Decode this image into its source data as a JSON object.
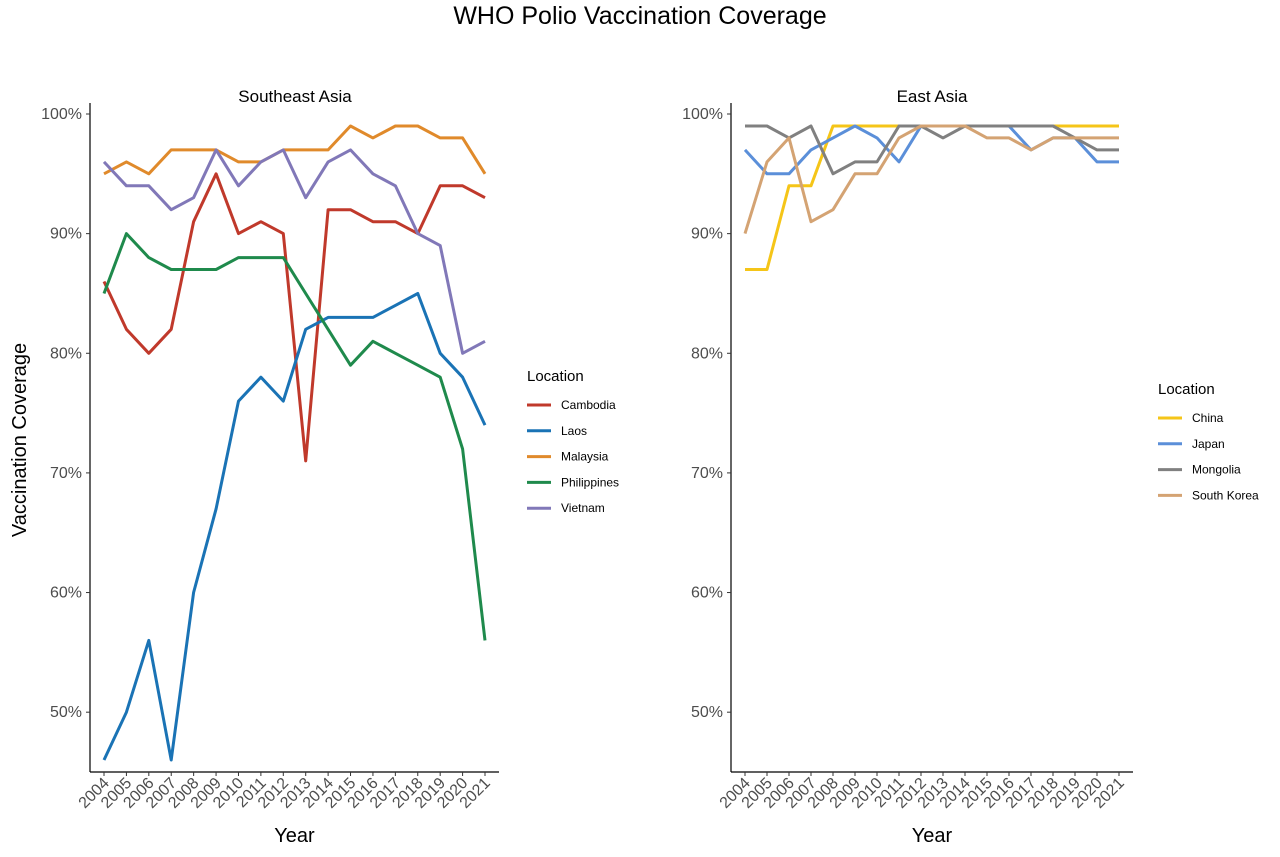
{
  "title": "WHO Polio Vaccination Coverage",
  "chart_data": [
    {
      "type": "line",
      "title": "Southeast Asia",
      "xlabel": "Year",
      "ylabel": "Vaccination Coverage",
      "ylim": [
        45,
        100
      ],
      "yticks": [
        "50%",
        "60%",
        "70%",
        "80%",
        "90%",
        "100%"
      ],
      "ytick_values": [
        50,
        60,
        70,
        80,
        90,
        100
      ],
      "x": [
        "2004",
        "2005",
        "2006",
        "2007",
        "2008",
        "2009",
        "2010",
        "2011",
        "2012",
        "2013",
        "2014",
        "2015",
        "2016",
        "2017",
        "2018",
        "2019",
        "2020",
        "2021"
      ],
      "grid": false,
      "legend_title": "Location",
      "legend_position": "right",
      "series": [
        {
          "name": "Cambodia",
          "color": "#c0392b",
          "values": [
            86,
            82,
            80,
            82,
            91,
            95,
            90,
            91,
            90,
            71,
            92,
            92,
            91,
            91,
            90,
            94,
            94,
            93
          ]
        },
        {
          "name": "Laos",
          "color": "#1a73b5",
          "values": [
            46,
            50,
            56,
            46,
            60,
            67,
            76,
            78,
            76,
            82,
            83,
            83,
            83,
            84,
            85,
            80,
            78,
            74
          ]
        },
        {
          "name": "Malaysia",
          "color": "#e08a2b",
          "values": [
            95,
            96,
            95,
            97,
            97,
            97,
            96,
            96,
            97,
            97,
            97,
            99,
            98,
            99,
            99,
            98,
            98,
            95
          ]
        },
        {
          "name": "Philippines",
          "color": "#1f8a4c",
          "values": [
            85,
            90,
            88,
            87,
            87,
            87,
            88,
            88,
            88,
            85,
            82,
            79,
            81,
            80,
            79,
            78,
            72,
            56
          ]
        },
        {
          "name": "Vietnam",
          "color": "#8178b8",
          "values": [
            96,
            94,
            94,
            92,
            93,
            97,
            94,
            96,
            97,
            93,
            96,
            97,
            95,
            94,
            90,
            89,
            80,
            81
          ]
        }
      ]
    },
    {
      "type": "line",
      "title": "East Asia",
      "xlabel": "Year",
      "ylabel": "",
      "ylim": [
        45,
        100
      ],
      "yticks": [
        "50%",
        "60%",
        "70%",
        "80%",
        "90%",
        "100%"
      ],
      "ytick_values": [
        50,
        60,
        70,
        80,
        90,
        100
      ],
      "x": [
        "2004",
        "2005",
        "2006",
        "2007",
        "2008",
        "2009",
        "2010",
        "2011",
        "2012",
        "2013",
        "2014",
        "2015",
        "2016",
        "2017",
        "2018",
        "2019",
        "2020",
        "2021"
      ],
      "grid": false,
      "legend_title": "Location",
      "legend_position": "right",
      "series": [
        {
          "name": "China",
          "color": "#f5c518",
          "values": [
            87,
            87,
            94,
            94,
            99,
            99,
            99,
            99,
            99,
            99,
            99,
            99,
            99,
            99,
            99,
            99,
            99,
            99
          ]
        },
        {
          "name": "Japan",
          "color": "#5b8fd9",
          "values": [
            97,
            95,
            95,
            97,
            98,
            99,
            98,
            96,
            99,
            99,
            99,
            99,
            99,
            97,
            98,
            98,
            96,
            96
          ]
        },
        {
          "name": "Mongolia",
          "color": "#808080",
          "values": [
            99,
            99,
            98,
            99,
            95,
            96,
            96,
            99,
            99,
            98,
            99,
            99,
            99,
            99,
            99,
            98,
            97,
            97
          ]
        },
        {
          "name": "South Korea",
          "color": "#d4a373",
          "values": [
            90,
            96,
            98,
            91,
            92,
            95,
            95,
            98,
            99,
            99,
            99,
            98,
            98,
            97,
            98,
            98,
            98,
            98
          ]
        }
      ]
    }
  ]
}
